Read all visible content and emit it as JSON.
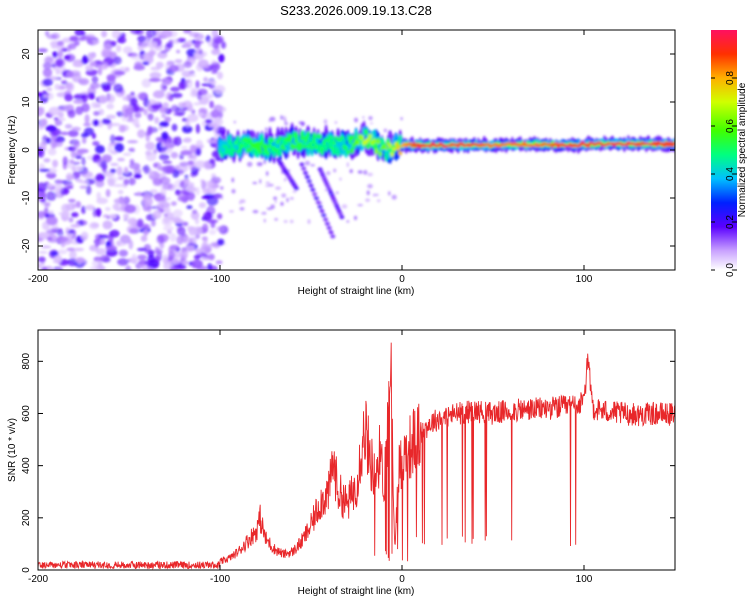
{
  "title": "S233.2026.009.19.13.C28",
  "chart_data": [
    {
      "type": "heatmap",
      "name": "spectrogram",
      "xlabel": "Height of straight line (km)",
      "ylabel": "Frequency (Hz)",
      "xlim": [
        -200,
        150
      ],
      "ylim": [
        -25,
        25
      ],
      "xticks": [
        -200,
        -100,
        0,
        100
      ],
      "yticks": [
        -20,
        -10,
        0,
        10,
        20
      ],
      "colorbar": {
        "label": "Normalized spectral amplitude",
        "range": [
          0,
          1
        ],
        "ticks": [
          0.0,
          0.2,
          0.4,
          0.6,
          0.8
        ]
      },
      "signal_trace": {
        "description_points_height_km": [
          -100,
          -90,
          -80,
          -70,
          -60,
          -50,
          -40,
          -30,
          -20,
          -10,
          0,
          10,
          30,
          50,
          70,
          90,
          110,
          130,
          150
        ],
        "frequency_hz": [
          0.5,
          0.8,
          1.0,
          0.5,
          2.0,
          1.5,
          1.2,
          1.0,
          2.5,
          0.0,
          1.0,
          1.0,
          1.0,
          1.0,
          1.2,
          1.0,
          1.3,
          1.3,
          1.2
        ],
        "amplitude": [
          0.45,
          0.5,
          0.55,
          0.5,
          0.55,
          0.5,
          0.5,
          0.5,
          0.7,
          0.6,
          0.8,
          0.95,
          0.95,
          0.85,
          0.85,
          0.9,
          0.95,
          0.95,
          0.9
        ]
      }
    },
    {
      "type": "line",
      "name": "snr",
      "xlabel": "Height of straight line (km)",
      "ylabel": "SNR (10 * v/v)",
      "xlim": [
        -200,
        150
      ],
      "ylim": [
        0,
        920
      ],
      "xticks": [
        -200,
        -100,
        0,
        100
      ],
      "yticks": [
        0,
        200,
        400,
        600,
        800
      ],
      "color": "#e8272a",
      "x": [
        -200,
        -180,
        -160,
        -140,
        -120,
        -110,
        -100,
        -95,
        -90,
        -85,
        -80,
        -78,
        -75,
        -70,
        -65,
        -60,
        -55,
        -50,
        -45,
        -40,
        -38,
        -35,
        -30,
        -25,
        -22,
        -20,
        -18,
        -15,
        -12,
        -10,
        -8,
        -6,
        -5,
        -4,
        -2,
        0,
        5,
        10,
        15,
        20,
        25,
        30,
        40,
        50,
        60,
        70,
        80,
        90,
        100,
        102,
        105,
        110,
        120,
        130,
        140,
        150
      ],
      "values": [
        15,
        15,
        18,
        15,
        18,
        25,
        30,
        45,
        70,
        110,
        150,
        200,
        120,
        80,
        60,
        70,
        110,
        170,
        260,
        300,
        420,
        300,
        250,
        330,
        480,
        550,
        440,
        360,
        450,
        330,
        520,
        900,
        300,
        80,
        380,
        420,
        480,
        520,
        560,
        580,
        590,
        600,
        610,
        600,
        610,
        615,
        620,
        625,
        640,
        800,
        620,
        610,
        600,
        595,
        600,
        595
      ]
    }
  ]
}
